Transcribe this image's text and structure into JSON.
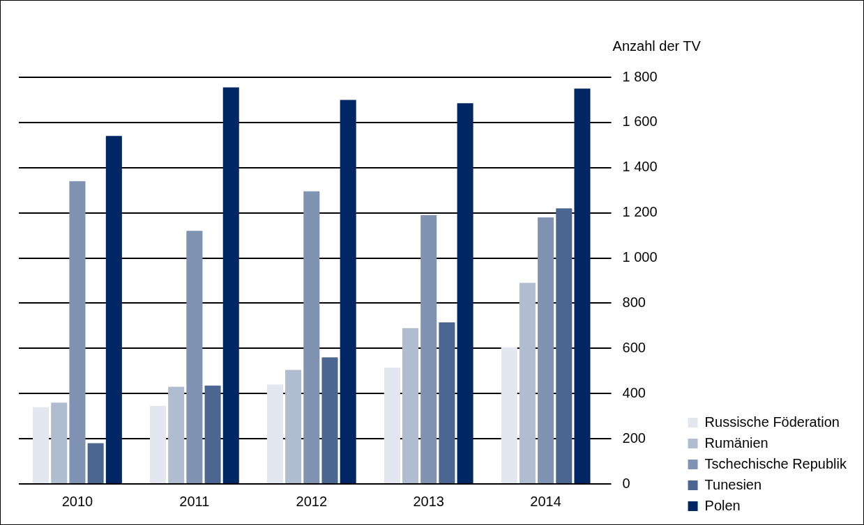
{
  "chart_data": {
    "type": "bar",
    "ylabel": "Anzahl der TV",
    "categories": [
      "2010",
      "2011",
      "2012",
      "2013",
      "2014"
    ],
    "series": [
      {
        "name": "Russische Föderation",
        "color": "#e3e7ef",
        "values": [
          340,
          345,
          440,
          515,
          605
        ]
      },
      {
        "name": "Rumänien",
        "color": "#b0bcd0",
        "values": [
          360,
          430,
          505,
          690,
          890
        ]
      },
      {
        "name": "Tschechische Republik",
        "color": "#8093b2",
        "values": [
          1340,
          1120,
          1295,
          1190,
          1180
        ]
      },
      {
        "name": "Tunesien",
        "color": "#4b6690",
        "values": [
          180,
          435,
          560,
          715,
          1220
        ]
      },
      {
        "name": "Polen",
        "color": "#002663",
        "values": [
          1540,
          1755,
          1700,
          1685,
          1750
        ]
      }
    ],
    "ylim": [
      0,
      1800
    ],
    "yticks": [
      0,
      200,
      400,
      600,
      800,
      {
        "value": 1000,
        "label": "1 000"
      },
      {
        "value": 1200,
        "label": "1 200"
      },
      {
        "value": 1400,
        "label": "1 400"
      },
      {
        "value": 1600,
        "label": "1 600"
      },
      {
        "value": 1800,
        "label": "1 800"
      }
    ],
    "grid": "y",
    "legend": "bottom right"
  }
}
